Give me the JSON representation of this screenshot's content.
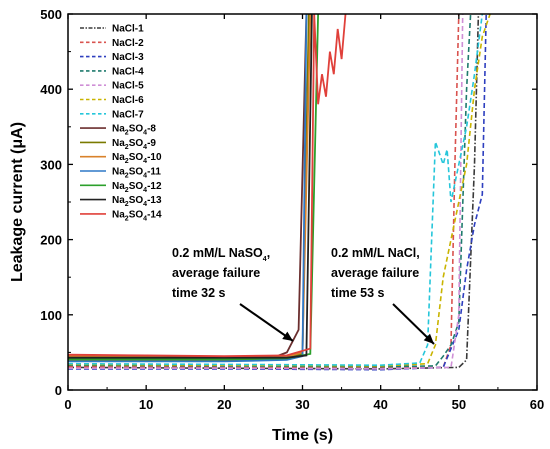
{
  "chart_data": {
    "type": "line",
    "xlabel": "Time (s)",
    "ylabel": "Leakage current (μA)",
    "xlim": [
      0,
      60
    ],
    "ylim": [
      0,
      500
    ],
    "xticks": [
      "0",
      "10",
      "20",
      "30",
      "40",
      "50",
      "60"
    ],
    "yticks": [
      "0",
      "100",
      "200",
      "300",
      "400",
      "500"
    ],
    "grid": false,
    "legend_position": "top-left",
    "series": [
      {
        "name": "NaCl-1",
        "color": "#3a3a3a",
        "dash": "dash-dot",
        "points": [
          [
            0,
            30
          ],
          [
            20,
            29
          ],
          [
            40,
            28
          ],
          [
            50,
            30
          ],
          [
            51,
            40
          ],
          [
            52,
            300
          ],
          [
            52.5,
            500
          ]
        ]
      },
      {
        "name": "NaCl-2",
        "color": "#d9534f",
        "dash": "dash",
        "points": [
          [
            0,
            31
          ],
          [
            20,
            30
          ],
          [
            40,
            29
          ],
          [
            48,
            30
          ],
          [
            49,
            60
          ],
          [
            49.5,
            300
          ],
          [
            50,
            500
          ]
        ]
      },
      {
        "name": "NaCl-3",
        "color": "#2e3fbf",
        "dash": "dash",
        "points": [
          [
            0,
            28
          ],
          [
            20,
            28
          ],
          [
            40,
            27
          ],
          [
            48,
            30
          ],
          [
            50,
            80
          ],
          [
            51,
            160
          ],
          [
            52,
            220
          ],
          [
            53,
            260
          ],
          [
            53.5,
            500
          ]
        ]
      },
      {
        "name": "NaCl-4",
        "color": "#1f7a6d",
        "dash": "dash",
        "points": [
          [
            0,
            33
          ],
          [
            20,
            32
          ],
          [
            40,
            31
          ],
          [
            47,
            32
          ],
          [
            48,
            45
          ],
          [
            49,
            60
          ],
          [
            50,
            90
          ],
          [
            51,
            400
          ],
          [
            51.5,
            500
          ]
        ]
      },
      {
        "name": "NaCl-5",
        "color": "#cf8fd6",
        "dash": "dash",
        "points": [
          [
            0,
            29
          ],
          [
            20,
            29
          ],
          [
            40,
            28
          ],
          [
            49,
            30
          ],
          [
            50,
            100
          ],
          [
            50.5,
            500
          ]
        ]
      },
      {
        "name": "NaCl-6",
        "color": "#c9b400",
        "dash": "dash",
        "points": [
          [
            0,
            34
          ],
          [
            20,
            33
          ],
          [
            40,
            32
          ],
          [
            46,
            35
          ],
          [
            47,
            60
          ],
          [
            48,
            150
          ],
          [
            49,
            200
          ],
          [
            50,
            250
          ],
          [
            51,
            300
          ],
          [
            52,
            400
          ],
          [
            53,
            470
          ],
          [
            54,
            500
          ]
        ]
      },
      {
        "name": "NaCl-7",
        "color": "#26c6da",
        "dash": "dash",
        "points": [
          [
            0,
            35
          ],
          [
            20,
            34
          ],
          [
            40,
            33
          ],
          [
            45,
            36
          ],
          [
            46,
            60
          ],
          [
            47,
            330
          ],
          [
            48,
            300
          ],
          [
            48.5,
            320
          ],
          [
            49,
            250
          ],
          [
            50,
            300
          ],
          [
            51,
            350
          ],
          [
            52,
            420
          ],
          [
            53,
            500
          ]
        ]
      },
      {
        "name": "Na2SO4-8",
        "color": "#6b2f2f",
        "dash": "solid",
        "points": [
          [
            0,
            42
          ],
          [
            10,
            41
          ],
          [
            20,
            40
          ],
          [
            26,
            42
          ],
          [
            28,
            50
          ],
          [
            29.5,
            80
          ],
          [
            30.5,
            500
          ]
        ]
      },
      {
        "name": "Na2SO4-9",
        "color": "#7a7a00",
        "dash": "solid",
        "points": [
          [
            0,
            40
          ],
          [
            10,
            40
          ],
          [
            20,
            40
          ],
          [
            28,
            42
          ],
          [
            30,
            48
          ],
          [
            30.8,
            500
          ]
        ]
      },
      {
        "name": "Na2SO4-10",
        "color": "#d9822b",
        "dash": "solid",
        "points": [
          [
            0,
            45
          ],
          [
            10,
            44
          ],
          [
            20,
            43
          ],
          [
            28,
            44
          ],
          [
            30,
            50
          ],
          [
            31,
            500
          ]
        ]
      },
      {
        "name": "Na2SO4-11",
        "color": "#2e78c7",
        "dash": "solid",
        "points": [
          [
            0,
            38
          ],
          [
            10,
            38
          ],
          [
            20,
            38
          ],
          [
            28,
            40
          ],
          [
            30,
            45
          ],
          [
            30.5,
            500
          ]
        ]
      },
      {
        "name": "Na2SO4-12",
        "color": "#2ca02c",
        "dash": "solid",
        "points": [
          [
            0,
            41
          ],
          [
            10,
            41
          ],
          [
            20,
            41
          ],
          [
            28,
            42
          ],
          [
            31,
            48
          ],
          [
            32,
            500
          ]
        ]
      },
      {
        "name": "Na2SO4-13",
        "color": "#222222",
        "dash": "solid",
        "points": [
          [
            0,
            43
          ],
          [
            10,
            43
          ],
          [
            20,
            43
          ],
          [
            28,
            43
          ],
          [
            30.5,
            46
          ],
          [
            31.2,
            500
          ]
        ]
      },
      {
        "name": "Na2SO4-14",
        "color": "#e0403a",
        "dash": "solid",
        "points": [
          [
            0,
            47
          ],
          [
            10,
            46
          ],
          [
            20,
            45
          ],
          [
            28,
            46
          ],
          [
            31,
            55
          ],
          [
            31.5,
            500
          ],
          [
            32,
            380
          ],
          [
            32.5,
            420
          ],
          [
            33,
            390
          ],
          [
            33.5,
            450
          ],
          [
            34,
            420
          ],
          [
            34.5,
            480
          ],
          [
            35,
            440
          ],
          [
            35.5,
            500
          ]
        ]
      }
    ],
    "annotations": [
      {
        "lines": [
          "0.2 mM/L NaSO",
          "average failure",
          "time 32 s"
        ],
        "sub_first": "4",
        "suffix_first": ","
      },
      {
        "lines": [
          "0.2 mM/L NaCl,",
          "average failure",
          "time 53 s"
        ]
      }
    ]
  }
}
